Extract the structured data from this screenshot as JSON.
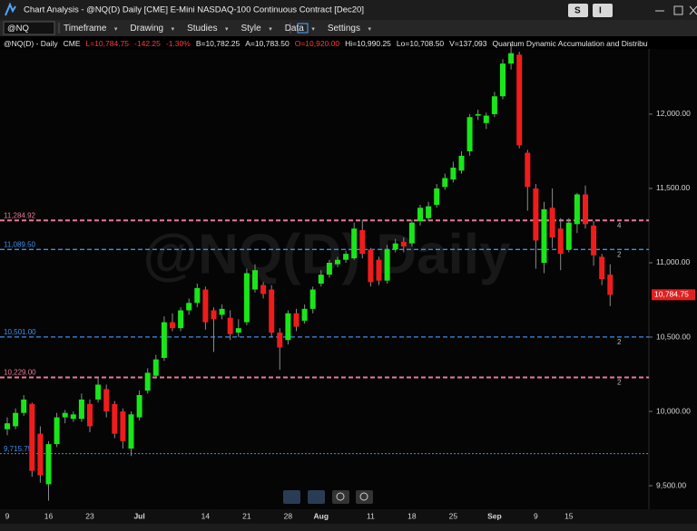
{
  "window": {
    "title": "Chart Analysis - @NQ(D) Daily [CME] E-Mini NASDAQ-100 Continuous Contract [Dec20]",
    "buttons": [
      "S",
      "I"
    ]
  },
  "toolbar": {
    "symbol": "@NQ",
    "items": [
      "Timeframe",
      "Drawing",
      "Studies",
      "Style",
      "Data",
      "Settings"
    ]
  },
  "info": [
    {
      "text": "@NQ(D) - Daily",
      "color": "#e8e8e8"
    },
    {
      "text": "CME",
      "color": "#e8e8e8"
    },
    {
      "text": "L=10,784.75",
      "color": "#ff3b3b"
    },
    {
      "text": "-142.25",
      "color": "#ff3b3b"
    },
    {
      "text": "-1.30%",
      "color": "#ff3b3b"
    },
    {
      "text": "B=10,782.25",
      "color": "#e8e8e8"
    },
    {
      "text": "A=10,783.50",
      "color": "#e8e8e8"
    },
    {
      "text": "O=10,920.00",
      "color": "#ff3b3b"
    },
    {
      "text": "Hi=10,990.25",
      "color": "#e8e8e8"
    },
    {
      "text": "Lo=10,708.50",
      "color": "#e8e8e8"
    },
    {
      "text": "V=137,093",
      "color": "#e8e8e8"
    },
    {
      "text": "Quantum Dynamic Accumulation and Distributio",
      "color": "#e8e8e8"
    }
  ],
  "chart_data": {
    "type": "candlestick",
    "watermark": "@NQ(D) Daily",
    "up_color": "#19e619",
    "down_color": "#f01c1c",
    "wick_color": "#8a8a8a",
    "categories": [
      "9",
      null,
      null,
      null,
      null,
      "16",
      null,
      null,
      null,
      null,
      "23",
      null,
      null,
      null,
      null,
      null,
      "Jul",
      null,
      null,
      null,
      null,
      null,
      null,
      null,
      "14",
      null,
      null,
      null,
      null,
      "21",
      null,
      null,
      null,
      null,
      "28",
      null,
      null,
      null,
      "Aug",
      null,
      null,
      null,
      null,
      null,
      "11",
      null,
      null,
      null,
      null,
      "18",
      null,
      null,
      null,
      null,
      "25",
      null,
      null,
      null,
      null,
      "Sep",
      null,
      null,
      null,
      null,
      "9",
      null,
      null,
      null,
      "15",
      null,
      null,
      null,
      null,
      null
    ],
    "open": [
      9880,
      9900,
      9990,
      10050,
      9850,
      9510,
      9780,
      9960,
      9950,
      9950,
      10050,
      10080,
      10150,
      10050,
      10000,
      9750,
      9960,
      10140,
      10240,
      10360,
      10600,
      10560,
      10680,
      10730,
      10820,
      10680,
      10650,
      10630,
      10530,
      10600,
      10820,
      10850,
      10820,
      10530,
      10480,
      10660,
      10610,
      10690,
      10860,
      10920,
      10990,
      11020,
      11030,
      11220,
      11090,
      11020,
      10880,
      11090,
      11140,
      11130,
      11280,
      11300,
      11390,
      11510,
      11560,
      11620,
      11750,
      11990,
      11940,
      12000,
      12120,
      12340,
      12400,
      11740,
      11500,
      11000,
      11370,
      11230,
      11090,
      11260,
      11460,
      11250,
      11040,
      10920
    ],
    "high": [
      9960,
      10020,
      10110,
      10060,
      9900,
      9800,
      9990,
      10010,
      10000,
      10120,
      10080,
      10230,
      10180,
      10070,
      10020,
      10000,
      10140,
      10290,
      10380,
      10640,
      10660,
      10700,
      10760,
      10860,
      10840,
      10700,
      10720,
      10680,
      10620,
      10960,
      10990,
      10870,
      10850,
      10560,
      10680,
      10690,
      10720,
      10840,
      10950,
      11020,
      11040,
      11080,
      11270,
      11290,
      11100,
      11040,
      11120,
      11160,
      11170,
      11290,
      11390,
      11410,
      11530,
      11600,
      11680,
      11750,
      12000,
      12030,
      12010,
      12150,
      12370,
      12470,
      12420,
      11760,
      11530,
      11410,
      11500,
      11300,
      11300,
      11470,
      11520,
      11280,
      11060,
      10990.25
    ],
    "low": [
      9840,
      9880,
      9970,
      9560,
      9520,
      9400,
      9760,
      9920,
      9930,
      9930,
      9860,
      10060,
      9960,
      9820,
      9750,
      9700,
      9940,
      10120,
      10220,
      10340,
      10540,
      10540,
      10650,
      10700,
      10550,
      10400,
      10620,
      10480,
      10500,
      10580,
      10800,
      10760,
      10500,
      10280,
      10450,
      10540,
      10590,
      10660,
      10840,
      10900,
      10970,
      11000,
      11020,
      11030,
      10840,
      10850,
      10860,
      11070,
      11070,
      11110,
      11250,
      11280,
      11370,
      11490,
      11540,
      11600,
      11720,
      11960,
      11900,
      11980,
      12100,
      12300,
      11770,
      11350,
      10960,
      10930,
      11100,
      10950,
      11070,
      11200,
      11230,
      10980,
      10850,
      10708.5
    ],
    "close": [
      9920,
      9990,
      10080,
      9600,
      9570,
      9780,
      9960,
      9990,
      9980,
      10080,
      9900,
      10180,
      10000,
      9850,
      9800,
      9980,
      10110,
      10260,
      10350,
      10600,
      10560,
      10680,
      10730,
      10830,
      10600,
      10620,
      10690,
      10520,
      10560,
      10930,
      10950,
      10790,
      10530,
      10430,
      10660,
      10570,
      10690,
      10820,
      10920,
      11000,
      11020,
      11060,
      11230,
      11060,
      10870,
      10880,
      11090,
      11130,
      11110,
      11270,
      11370,
      11380,
      11500,
      11570,
      11640,
      11720,
      11980,
      12000,
      11990,
      12120,
      12340,
      12410,
      11790,
      11510,
      11150,
      11360,
      11170,
      11060,
      11270,
      11460,
      11260,
      11050,
      10890,
      10784.75
    ],
    "ylim": [
      9354,
      12524
    ],
    "yticks": [
      {
        "value": 9500,
        "label": "9,500.00"
      },
      {
        "value": 10000,
        "label": "10,000.00"
      },
      {
        "value": 10500,
        "label": "10,500.00"
      },
      {
        "value": 11000,
        "label": "11,000.00"
      },
      {
        "value": 11500,
        "label": "11,500.00"
      },
      {
        "value": 12000,
        "label": "12,000.00"
      }
    ],
    "levels": [
      {
        "value": 11284.92,
        "label": "11,284.92",
        "color": "#e8799a",
        "style": "dashed",
        "count": "4"
      },
      {
        "value": 11089.5,
        "label": "11,089.50",
        "color": "#3d8fe6",
        "style": "dashed",
        "count": "2"
      },
      {
        "value": 10501,
        "label": "10,501.00",
        "color": "#3d8fe6",
        "style": "dashed",
        "count": "2"
      },
      {
        "value": 10229,
        "label": "10,229.00",
        "color": "#e8799a",
        "style": "dashed",
        "count": "2"
      },
      {
        "value": 9715.75,
        "label": "9,715.75",
        "color": "#3d8fe6",
        "style": "dotted"
      }
    ],
    "last_price": {
      "value": 10784.75,
      "label": "10,784.75",
      "color": "#e02020"
    }
  }
}
